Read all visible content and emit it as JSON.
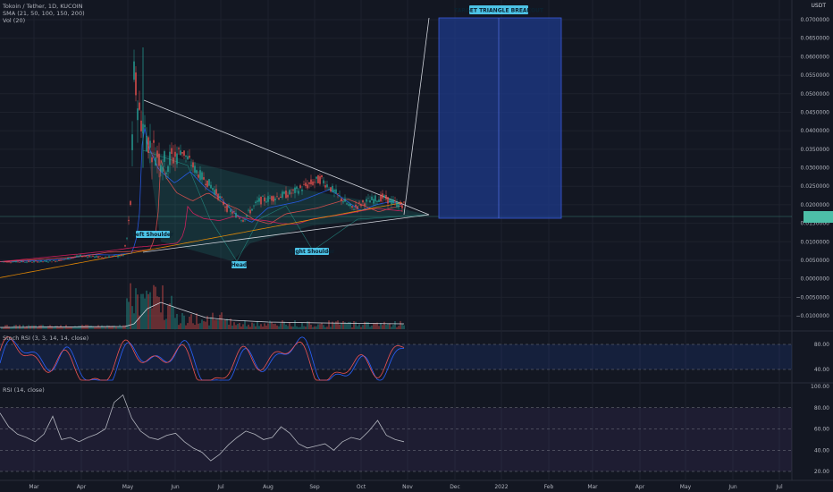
{
  "header": {
    "symbol_line": "Tokoin / Tether, 1D, KUCOIN",
    "sma_line": "SMA (21, 50, 100, 150, 200)",
    "vol_line": "Vol (20)",
    "currency": "USDT"
  },
  "panes": {
    "stoch_label": "Stoch RSI (3, 3, 14, 14, close)",
    "rsi_label": "RSI (14, close)"
  },
  "colors": {
    "background": "#131722",
    "up_candle": "#26a69a",
    "down_candle": "#ef5350",
    "triangle_fill": "#26a69a",
    "target_box": "#1e3a8a",
    "price_tag": "#4dbfa8",
    "stoch_k": "#2962ff",
    "stoch_d": "#ef5350",
    "rsi_line": "#b2b5be"
  },
  "annotations": {
    "target_box_label": "TARGET TRIANGLE BREAKOUT",
    "left_shoulder": "Left Shoulder",
    "head": "Head",
    "right_shoulder": "Right Shoulder"
  },
  "chart_data": [
    {
      "type": "candlestick",
      "title": "Tokoin / Tether, 1D, KUCOIN",
      "x_ticks": [
        "Mar",
        "Apr",
        "May",
        "Jun",
        "Jul",
        "Aug",
        "Sep",
        "Oct",
        "Nov",
        "Dec",
        "2022",
        "Feb",
        "Mar",
        "Apr",
        "May",
        "Jun",
        "Jul"
      ],
      "y_ticks": [
        0.07,
        0.065,
        0.06,
        0.055,
        0.05,
        0.045,
        0.04,
        0.035,
        0.03,
        0.025,
        0.02,
        0.015,
        0.01,
        0.005,
        0,
        -0.005,
        -0.01
      ],
      "y_tick_labels": [
        "0.0700000",
        "0.0650000",
        "0.0600000",
        "0.0550000",
        "0.0500000",
        "0.0450000",
        "0.0400000",
        "0.0350000",
        "0.0300000",
        "0.0250000",
        "0.0200000",
        "0.0150000",
        "0.0100000",
        "0.0050000",
        "0.0000000",
        "−0.0050000",
        "−0.0100000"
      ],
      "ylim": [
        -0.0125,
        0.0755
      ],
      "series": [
        {
          "name": "Price",
          "points": [
            [
              "Mar 1",
              0.0046
            ],
            [
              "Mar 15",
              0.0048
            ],
            [
              "Apr 1",
              0.0062
            ],
            [
              "Apr 15",
              0.0058
            ],
            [
              "Apr 28",
              0.0062
            ],
            [
              "May 1",
              0.012
            ],
            [
              "May 3",
              0.022
            ],
            [
              "May 5",
              0.055
            ],
            [
              "May 8",
              0.045
            ],
            [
              "May 15",
              0.036
            ],
            [
              "May 25",
              0.031
            ],
            [
              "Jun 5",
              0.035
            ],
            [
              "Jun 15",
              0.029
            ],
            [
              "Jun 25",
              0.025
            ],
            [
              "Jul 5",
              0.019
            ],
            [
              "Jul 15",
              0.016
            ],
            [
              "Jul 25",
              0.021
            ],
            [
              "Aug 5",
              0.022
            ],
            [
              "Aug 15",
              0.023
            ],
            [
              "Aug 25",
              0.025
            ],
            [
              "Sep 5",
              0.027
            ],
            [
              "Sep 15",
              0.023
            ],
            [
              "Sep 25",
              0.019
            ],
            [
              "Oct 5",
              0.021
            ],
            [
              "Oct 15",
              0.022
            ],
            [
              "Oct 25",
              0.02
            ]
          ]
        }
      ],
      "last_price": 0.0196,
      "legend": "none"
    },
    {
      "type": "line",
      "title": "Stoch RSI (3, 3, 14, 14, close)",
      "y_ticks": [
        80,
        40
      ],
      "y_tick_labels": [
        "80.00",
        "40.00"
      ],
      "ylim": [
        0,
        100
      ]
    },
    {
      "type": "line",
      "title": "RSI (14, close)",
      "y_ticks": [
        100,
        80,
        60,
        40,
        20
      ],
      "y_tick_labels": [
        "100.00",
        "80.00",
        "60.00",
        "40.00",
        "20.00"
      ],
      "ylim": [
        15,
        100
      ],
      "series": [
        {
          "name": "RSI",
          "values": [
            75,
            62,
            55,
            52,
            48,
            55,
            72,
            50,
            52,
            48,
            52,
            55,
            60,
            85,
            92,
            70,
            58,
            52,
            50,
            54,
            56,
            48,
            42,
            38,
            30,
            36,
            45,
            52,
            58,
            55,
            50,
            52,
            62,
            56,
            46,
            42,
            44,
            46,
            40,
            48,
            52,
            50,
            58,
            68,
            54,
            50,
            48
          ]
        }
      ]
    }
  ]
}
